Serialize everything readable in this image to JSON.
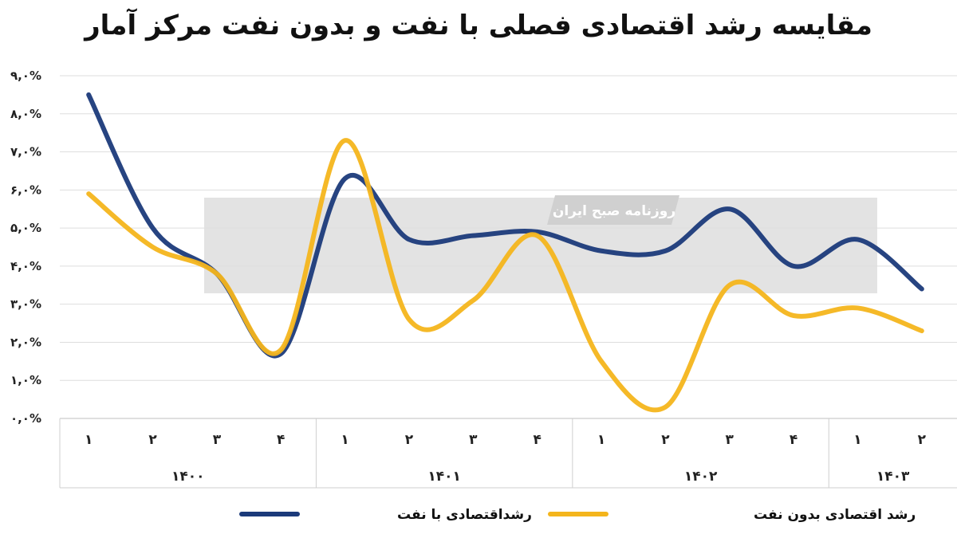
{
  "chart_data": {
    "type": "line",
    "title": "مقایسه رشد اقتصادی فصلی با نفت و بدون نفت مرکز آمار",
    "y_ticks": [
      "۰,۰%",
      "۱,۰%",
      "۲,۰%",
      "۳,۰%",
      "۴,۰%",
      "۵,۰%",
      "۶,۰%",
      "۷,۰%",
      "۸,۰%",
      "۹,۰%"
    ],
    "ylim": [
      0,
      9
    ],
    "grid": true,
    "categories": [
      "۱",
      "۲",
      "۳",
      "۴",
      "۱",
      "۲",
      "۳",
      "۴",
      "۱",
      "۲",
      "۳",
      "۴",
      "۱",
      "۲"
    ],
    "year_groups": [
      {
        "label": "۱۴۰۰",
        "span": 4
      },
      {
        "label": "۱۴۰۱",
        "span": 4
      },
      {
        "label": "۱۴۰۲",
        "span": 4
      },
      {
        "label": "۱۴۰۳",
        "span": 2
      }
    ],
    "legend_position": "bottom",
    "series": [
      {
        "name": "رشداقتصادی با نفت",
        "color": "#1b3a7a",
        "values": [
          8.5,
          5.0,
          3.8,
          1.7,
          6.3,
          4.7,
          4.8,
          4.9,
          4.4,
          4.4,
          5.5,
          4.0,
          4.7,
          3.4
        ]
      },
      {
        "name": "رشد اقتصادی بدون نفت",
        "color": "#f4b51c",
        "values": [
          5.9,
          4.5,
          3.8,
          1.8,
          7.3,
          2.6,
          3.1,
          4.8,
          1.5,
          0.3,
          3.5,
          2.7,
          2.9,
          2.3
        ]
      }
    ],
    "watermark_label": "روزنامه صبح ایران"
  }
}
